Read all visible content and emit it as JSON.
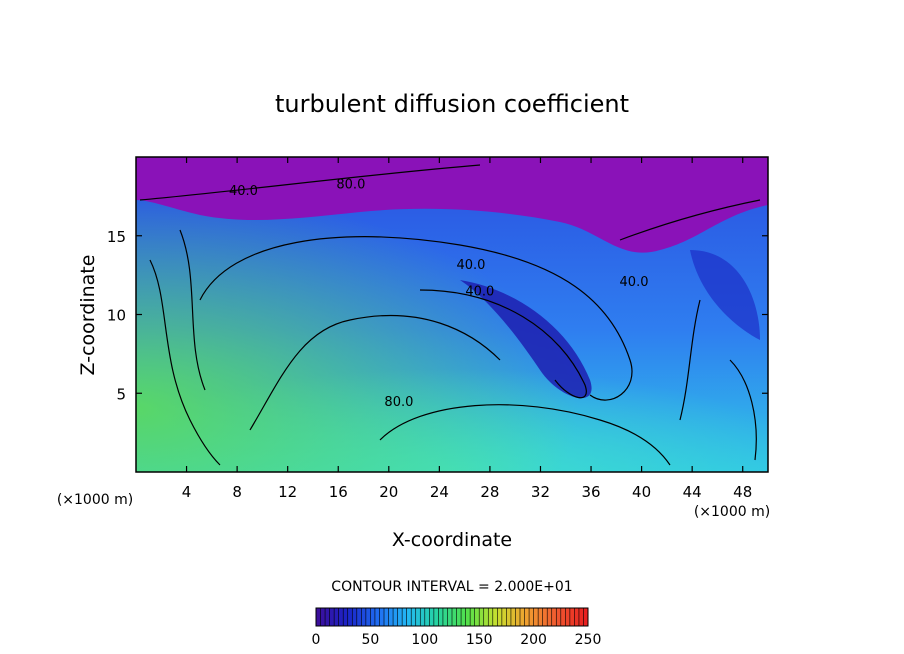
{
  "chart_data": {
    "type": "heatmap",
    "title": "turbulent diffusion coefficient",
    "xlabel": "X-coordinate",
    "ylabel": "Z-coordinate",
    "x_unit": "(×1000 m)",
    "z_unit": "(×1000 m)",
    "xlim": [
      0,
      50
    ],
    "ylim": [
      0,
      20
    ],
    "x_ticks": [
      4,
      8,
      12,
      16,
      20,
      24,
      28,
      32,
      36,
      40,
      44,
      48
    ],
    "y_ticks": [
      5,
      10,
      15
    ],
    "contour_interval_label": "CONTOUR INTERVAL = 2.000E+01",
    "contour_labels": [
      {
        "text": "40.0",
        "x": 26.5,
        "y": 12.9
      },
      {
        "text": "40.0",
        "x": 27.2,
        "y": 11.2
      },
      {
        "text": "40.0",
        "x": 39.4,
        "y": 11.8
      },
      {
        "text": "80.0",
        "x": 20.8,
        "y": 4.2
      },
      {
        "text": "40.0",
        "x": 8.5,
        "y": 17.6
      },
      {
        "text": "80.0",
        "x": 17.0,
        "y": 18.0
      }
    ],
    "colorbar": {
      "min": 0,
      "max": 250,
      "ticks": [
        0,
        50,
        100,
        150,
        200,
        250
      ],
      "colors": [
        "#3b0f9c",
        "#1a24c8",
        "#1f6cf2",
        "#23b8f4",
        "#26d4a0",
        "#52e04a",
        "#c8e030",
        "#f0a030",
        "#f05a30",
        "#e82020"
      ]
    },
    "background_fill": {
      "upper": "#8a12b8",
      "field": "#2f74e8"
    }
  }
}
